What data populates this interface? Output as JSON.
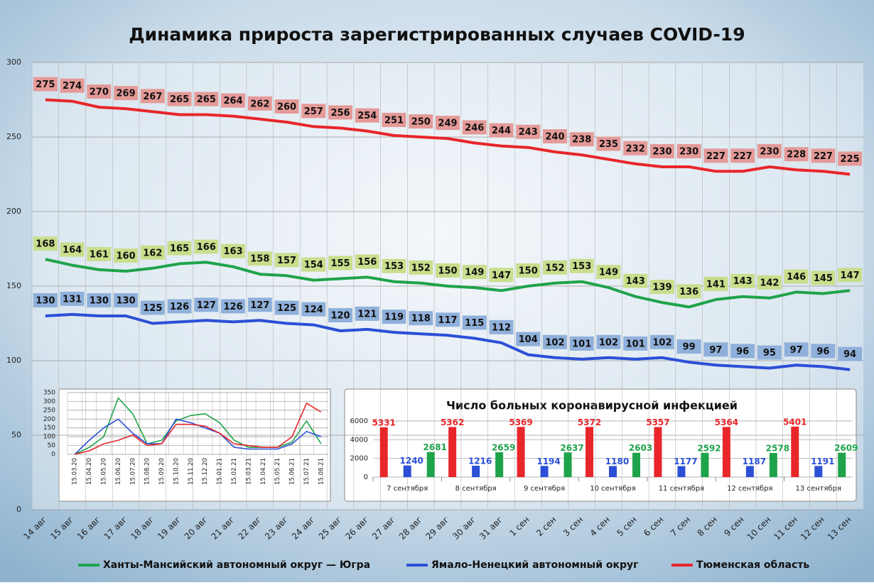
{
  "chart_data": [
    {
      "type": "line",
      "title": "Динамика прироста зарегистрированных случаев COVID-19",
      "categories": [
        "14 авг",
        "15 авг",
        "16 авг",
        "17 авг",
        "18 авг",
        "19 авг",
        "20 авг",
        "21 авг",
        "22 авг",
        "23 авг",
        "24 авг",
        "25 авг",
        "26 авг",
        "27 авг",
        "28 авг",
        "29 авг",
        "30 авг",
        "31 авг",
        "1 сен",
        "2 сен",
        "3 сен",
        "4 сен",
        "5 сен",
        "6 сен",
        "7 сен",
        "8 сен",
        "9 сен",
        "10 сен",
        "11 сен",
        "12 сен",
        "13 сен"
      ],
      "series": [
        {
          "name": "Ханты-Мансийский автономный округ — Югра",
          "color": "#1fa34a",
          "label_color": "#c8de8c",
          "values": [
            168,
            164,
            161,
            160,
            162,
            165,
            166,
            163,
            158,
            157,
            154,
            155,
            156,
            153,
            152,
            150,
            149,
            147,
            150,
            152,
            153,
            149,
            143,
            139,
            136,
            141,
            143,
            142,
            146,
            145,
            147
          ]
        },
        {
          "name": "Ямало-Ненецкий автономный округ",
          "color": "#2b4fd6",
          "label_color": "#8fb0da",
          "values": [
            130,
            131,
            130,
            130,
            125,
            126,
            127,
            126,
            127,
            125,
            124,
            120,
            121,
            119,
            118,
            117,
            115,
            112,
            104,
            102,
            101,
            102,
            101,
            102,
            99,
            97,
            96,
            95,
            97,
            96,
            94
          ]
        },
        {
          "name": "Тюменская область",
          "color": "#e8262a",
          "label_color": "#e49a98",
          "values": [
            275,
            274,
            270,
            269,
            267,
            265,
            265,
            264,
            262,
            260,
            257,
            256,
            254,
            251,
            250,
            249,
            246,
            244,
            243,
            240,
            238,
            235,
            232,
            230,
            230,
            227,
            227,
            230,
            228,
            227,
            225
          ]
        }
      ],
      "ylim": [
        0,
        300
      ],
      "yticks": [
        0,
        50,
        100,
        150,
        200,
        250,
        300
      ],
      "grid": true,
      "legend": "bottom"
    },
    {
      "type": "line",
      "categories": [
        "15.03.20",
        "15.04.20",
        "15.05.20",
        "15.06.20",
        "15.07.20",
        "15.08.20",
        "15.09.20",
        "15.10.20",
        "15.11.20",
        "15.12.20",
        "15.01.21",
        "15.02.21",
        "15.03.21",
        "15.04.21",
        "15.05.21",
        "15.06.21",
        "15.07.21",
        "15.08.21"
      ],
      "series": [
        {
          "color": "#1fa34a",
          "values": [
            0,
            40,
            100,
            320,
            230,
            60,
            80,
            190,
            220,
            230,
            180,
            80,
            40,
            40,
            40,
            70,
            190,
            60
          ]
        },
        {
          "color": "#2b4fd6",
          "values": [
            0,
            80,
            150,
            200,
            120,
            60,
            60,
            200,
            180,
            150,
            120,
            40,
            30,
            30,
            30,
            60,
            130,
            100
          ]
        },
        {
          "color": "#e8262a",
          "values": [
            0,
            20,
            60,
            80,
            110,
            50,
            60,
            170,
            170,
            160,
            120,
            60,
            50,
            40,
            40,
            100,
            290,
            240
          ]
        }
      ],
      "ylim": [
        0,
        350
      ],
      "yticks": [
        0,
        50,
        100,
        150,
        200,
        250,
        300,
        350
      ],
      "grid": true
    },
    {
      "type": "bar",
      "title": "Число больных коронавирусной инфекцией",
      "categories": [
        "7 сентября",
        "8 сентября",
        "9 сентября",
        "10 сентября",
        "11 сентября",
        "12 сентября",
        "13 сентября"
      ],
      "series": [
        {
          "color": "#e8262a",
          "values": [
            5331,
            5362,
            5369,
            5372,
            5357,
            5364,
            5401
          ]
        },
        {
          "color": "#2b4fd6",
          "values": [
            1240,
            1216,
            1194,
            1180,
            1177,
            1187,
            1191
          ]
        },
        {
          "color": "#1fa34a",
          "values": [
            2681,
            2659,
            2637,
            2603,
            2592,
            2578,
            2609
          ]
        }
      ],
      "ylim": [
        0,
        6000
      ],
      "yticks": [
        0,
        2000,
        4000,
        6000
      ],
      "grid": true
    }
  ]
}
